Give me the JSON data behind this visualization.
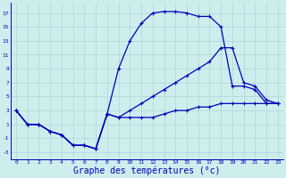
{
  "bg_color": "#ceeeed",
  "line_color": "#0000bb",
  "grid_color": "#a8d8d8",
  "xlabel": "Graphe des températures (°c)",
  "xlabel_fontsize": 7,
  "yticks": [
    -3,
    -1,
    1,
    3,
    5,
    7,
    9,
    11,
    13,
    15,
    17
  ],
  "xticks": [
    0,
    1,
    2,
    3,
    4,
    5,
    6,
    7,
    8,
    9,
    10,
    11,
    12,
    13,
    14,
    15,
    16,
    17,
    18,
    19,
    20,
    21,
    22,
    23
  ],
  "xlim": [
    -0.5,
    23.5
  ],
  "ylim": [
    -4,
    18.5
  ],
  "curve1_x": [
    0,
    1,
    2,
    3,
    4,
    5,
    6,
    7,
    8,
    9,
    10,
    11,
    12,
    13,
    14,
    15,
    16,
    17,
    18,
    19,
    20,
    21,
    22,
    23
  ],
  "curve1_y": [
    3,
    1,
    1,
    0,
    -0.5,
    -2,
    -2,
    -2.5,
    2.5,
    9,
    13,
    15.5,
    17,
    17.2,
    17.2,
    17,
    16.5,
    16.5,
    15,
    6.5,
    6.5,
    6,
    4,
    4
  ],
  "curve2_x": [
    0,
    1,
    2,
    3,
    4,
    5,
    6,
    7,
    8,
    9,
    10,
    11,
    12,
    13,
    14,
    15,
    16,
    17,
    18,
    19,
    20,
    21,
    22,
    23
  ],
  "curve2_y": [
    3,
    1,
    1,
    0,
    -0.5,
    -2,
    -2,
    -2.5,
    2.5,
    2,
    3,
    4,
    5,
    6,
    7,
    8,
    9,
    10,
    12,
    12,
    7,
    6.5,
    4.5,
    4
  ],
  "curve3_x": [
    0,
    1,
    2,
    3,
    4,
    5,
    6,
    7,
    8,
    9,
    10,
    11,
    12,
    13,
    14,
    15,
    16,
    17,
    18,
    19,
    20,
    21,
    22,
    23
  ],
  "curve3_y": [
    3,
    1,
    1,
    0,
    -0.5,
    -2,
    -2,
    -2.5,
    2.5,
    2,
    2,
    2,
    2,
    2.5,
    3,
    3,
    3.5,
    3.5,
    4,
    4,
    4,
    4,
    4,
    4
  ]
}
